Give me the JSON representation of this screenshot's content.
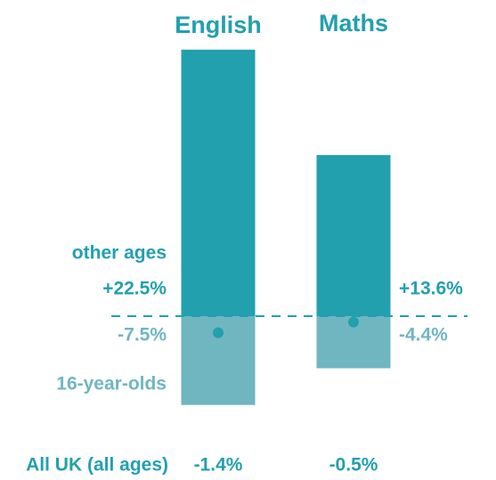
{
  "chart_data": {
    "type": "bar",
    "categories": [
      "English",
      "Maths"
    ],
    "series": [
      {
        "name": "other ages",
        "color": "#22a0ae",
        "values": [
          22.5,
          13.6
        ],
        "value_labels": [
          "+22.5%",
          "+13.6%"
        ]
      },
      {
        "name": "16-year-olds",
        "color": "#6fb6c1",
        "values": [
          -7.5,
          -4.4
        ],
        "value_labels": [
          "-7.5%",
          "-4.4%"
        ]
      },
      {
        "name": "All UK (all ages)",
        "color": "#22a0ae",
        "values": [
          -1.4,
          -0.5
        ],
        "value_labels": [
          "-1.4%",
          "-0.5%"
        ]
      }
    ]
  }
}
